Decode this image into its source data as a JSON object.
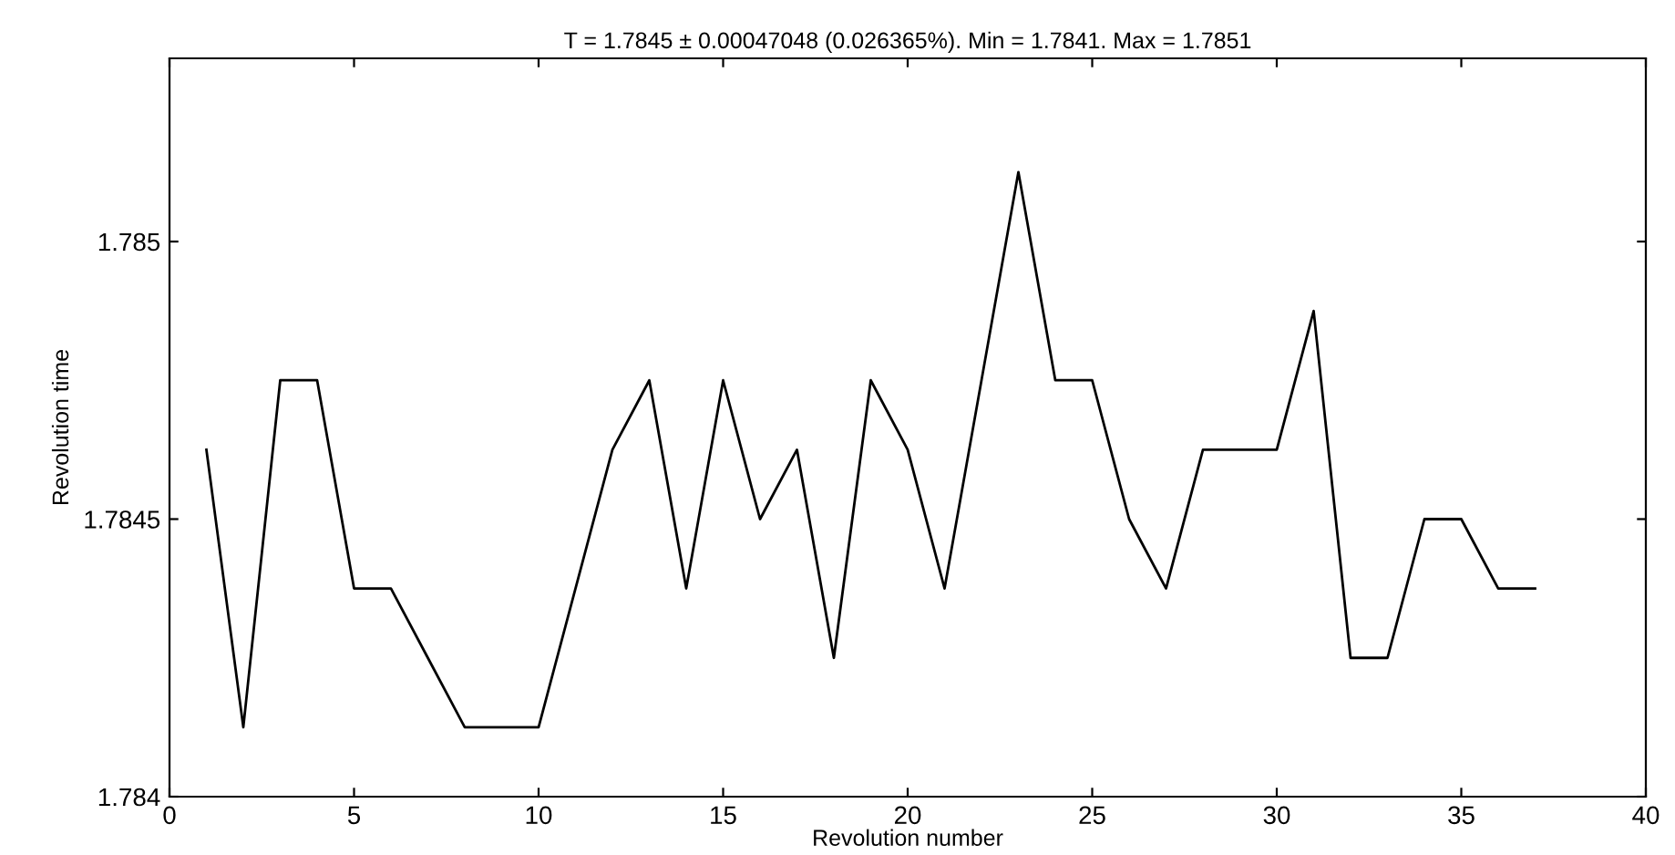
{
  "chart_data": {
    "type": "line",
    "title": "T = 1.7845 ± 0.00047048 (0.026365%). Min = 1.7841. Max = 1.7851",
    "xlabel": "Revolution number",
    "ylabel": "Revolution time",
    "x": [
      1,
      2,
      3,
      4,
      5,
      6,
      7,
      8,
      9,
      10,
      11,
      12,
      13,
      14,
      15,
      16,
      17,
      18,
      19,
      20,
      21,
      22,
      23,
      24,
      25,
      26,
      27,
      28,
      29,
      30,
      31,
      32,
      33,
      34,
      35,
      36,
      37
    ],
    "series": [
      {
        "color": "#000000",
        "values": [
          1.784625,
          1.784125,
          1.78475,
          1.78475,
          1.784375,
          1.784375,
          1.78425,
          1.784125,
          1.784125,
          1.784125,
          1.784375,
          1.784625,
          1.78475,
          1.784375,
          1.78475,
          1.7845,
          1.784625,
          1.78425,
          1.78475,
          1.784625,
          1.784375,
          1.78475,
          1.785125,
          1.78475,
          1.78475,
          1.7845,
          1.784375,
          1.784625,
          1.784625,
          1.784625,
          1.784875,
          1.78425,
          1.78425,
          1.7845,
          1.7845,
          1.784375,
          1.784375
        ]
      }
    ],
    "xlim": [
      0,
      40
    ],
    "ylim": [
      1.784,
      1.78533
    ],
    "xticks": [
      0,
      5,
      10,
      15,
      20,
      25,
      30,
      35,
      40
    ],
    "yticks": [
      1.784,
      1.7845,
      1.785
    ],
    "grid": false,
    "legend": false,
    "marker": "none",
    "line_style": "solid"
  }
}
